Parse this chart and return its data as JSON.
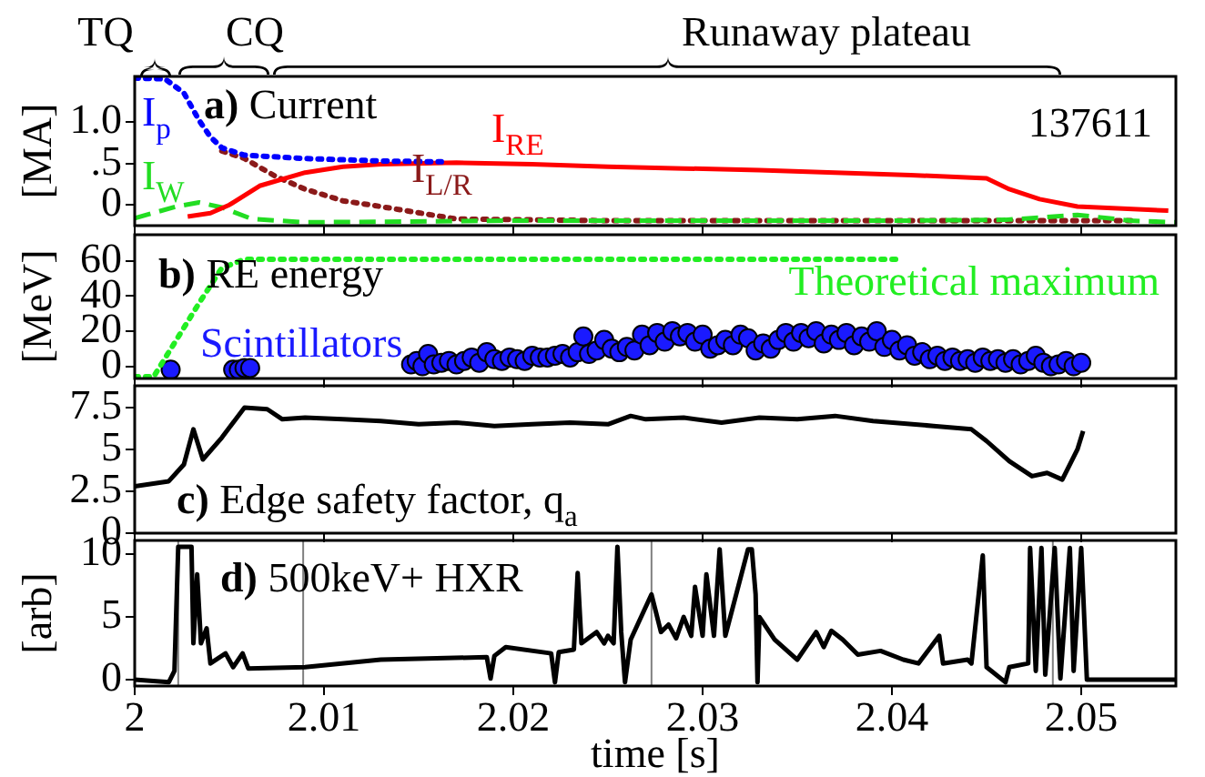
{
  "chart_data": [
    {
      "type": "line",
      "title": "a) Current",
      "ylabel": "[MA]",
      "xlim": [
        2,
        2.055
      ],
      "xticks": [
        2,
        2.01,
        2.02,
        2.03,
        2.04,
        2.05
      ],
      "ylim": [
        -0.25,
        1.55
      ],
      "yticks": [
        0,
        {
          "value": 0.5,
          "label": ".5"
        },
        {
          "value": 1,
          "label": "1.0"
        }
      ],
      "tick_labels": "y",
      "annotations": [
        "TQ",
        "CQ",
        "Runaway plateau",
        "137611"
      ],
      "series": [
        {
          "name": "I$_{p}$",
          "color": "#0000ff",
          "line_style": "dotted",
          "x": [
            2,
            2.0016,
            2.0026,
            2.0034,
            2.004,
            2.0046,
            2.0058,
            2.009,
            2.013,
            2.0162
          ],
          "values": [
            1.53,
            1.52,
            1.35,
            1.02,
            0.82,
            0.69,
            0.6,
            0.56,
            0.53,
            0.52
          ]
        },
        {
          "name": "I$_{RE}$",
          "color": "#ff0000",
          "line_style": "solid",
          "x": [
            2.0028,
            2.004,
            2.005,
            2.0066,
            2.009,
            2.011,
            2.013,
            2.017,
            2.021,
            2.025,
            2.029,
            2.033,
            2.037,
            2.041,
            2.045,
            2.0462,
            2.0478,
            2.0498,
            2.0546
          ],
          "values": [
            -0.14,
            -0.1,
            0,
            0.23,
            0.39,
            0.46,
            0.49,
            0.51,
            0.49,
            0.46,
            0.44,
            0.42,
            0.39,
            0.36,
            0.32,
            0.19,
            0.07,
            -0.02,
            -0.07
          ]
        },
        {
          "name": "I$_{W}$",
          "color": "#22dd22",
          "line_style": "dashed",
          "x": [
            2,
            2.0022,
            2.0034,
            2.0046,
            2.0062,
            2.009,
            2.02,
            2.03,
            2.04,
            2.046,
            2.0498,
            2.0526,
            2.055
          ],
          "values": [
            -0.16,
            -0.02,
            0.03,
            -0.03,
            -0.17,
            -0.21,
            -0.19,
            -0.19,
            -0.19,
            -0.18,
            -0.12,
            -0.19,
            -0.21
          ]
        },
        {
          "name": "I$_{L/R}$",
          "color": "#8b1a1a",
          "line_style": "dotted",
          "x": [
            2.0046,
            2.0058,
            2.0074,
            2.009,
            2.011,
            2.013,
            2.017,
            2.025,
            2.035,
            2.045,
            2.053
          ],
          "values": [
            0.65,
            0.56,
            0.35,
            0.19,
            0.05,
            -0.02,
            -0.17,
            -0.19,
            -0.19,
            -0.19,
            -0.19
          ]
        }
      ]
    },
    {
      "type": "scatter",
      "title": "b) RE energy",
      "ylabel": "[MeV]",
      "xlim": [
        2,
        2.055
      ],
      "xticks": [
        2,
        2.01,
        2.02,
        2.03,
        2.04,
        2.05
      ],
      "ylim": [
        -7,
        75
      ],
      "yticks": [
        0,
        20,
        40,
        60
      ],
      "tick_labels": "y",
      "series": [
        {
          "name": "Theoretical maximum",
          "type": "line",
          "color": "#22ee22",
          "line_style": "dotted",
          "marker": "none",
          "x": [
            2,
            2.001,
            2.0022,
            2.0034,
            2.0046,
            2.0058,
            2.0402
          ],
          "values": [
            -6,
            -6,
            15,
            36,
            56,
            61,
            61
          ]
        },
        {
          "name": "Scintillators",
          "color": "#1a1aff",
          "marker": "circle",
          "x": [
            2.0019,
            2.0052,
            2.0055,
            2.0058,
            2.0061,
            2.0146,
            2.0149,
            2.0152,
            2.0155,
            2.0158,
            2.0162,
            2.0166,
            2.017,
            2.0174,
            2.0178,
            2.0182,
            2.0186,
            2.019,
            2.0194,
            2.0198,
            2.0202,
            2.0206,
            2.021,
            2.0214,
            2.0218,
            2.0222,
            2.0226,
            2.023,
            2.0234,
            2.0237,
            2.024,
            2.0244,
            2.0248,
            2.0252,
            2.0256,
            2.026,
            2.0264,
            2.0268,
            2.0272,
            2.0276,
            2.028,
            2.0284,
            2.0288,
            2.0292,
            2.0296,
            2.03,
            2.0304,
            2.0308,
            2.0312,
            2.0316,
            2.032,
            2.0324,
            2.0328,
            2.0332,
            2.0336,
            2.034,
            2.0344,
            2.0348,
            2.0352,
            2.0356,
            2.036,
            2.0364,
            2.0368,
            2.0372,
            2.0376,
            2.038,
            2.0384,
            2.0388,
            2.0392,
            2.0396,
            2.04,
            2.0404,
            2.0408,
            2.0412,
            2.0416,
            2.042,
            2.0424,
            2.0428,
            2.0432,
            2.0436,
            2.044,
            2.0444,
            2.0448,
            2.0452,
            2.0456,
            2.046,
            2.0464,
            2.0468,
            2.0472,
            2.0476,
            2.048,
            2.0484,
            2.0488,
            2.0492,
            2.0496,
            2.05
          ],
          "values": [
            -2,
            -2,
            -2,
            -1,
            -1,
            1,
            3,
            0,
            7,
            1,
            2,
            3,
            1,
            3,
            5,
            2,
            8,
            4,
            3,
            5,
            4,
            3,
            6,
            5,
            5,
            6,
            7,
            5,
            8,
            17,
            7,
            9,
            15,
            10,
            8,
            11,
            9,
            18,
            12,
            19,
            14,
            20,
            17,
            19,
            14,
            18,
            10,
            12,
            15,
            12,
            18,
            16,
            9,
            13,
            10,
            15,
            19,
            14,
            19,
            16,
            20,
            13,
            18,
            15,
            19,
            12,
            17,
            14,
            20,
            11,
            15,
            9,
            12,
            6,
            8,
            4,
            6,
            3,
            5,
            3,
            4,
            2,
            5,
            3,
            4,
            2,
            4,
            1,
            3,
            6,
            2,
            0,
            1,
            3,
            0,
            2
          ]
        }
      ]
    },
    {
      "type": "line",
      "title": "c) Edge safety factor, q$_{a}$",
      "xlim": [
        2,
        2.055
      ],
      "xticks": [
        2,
        2.01,
        2.02,
        2.03,
        2.04,
        2.05
      ],
      "ylim": [
        0,
        8.8
      ],
      "yticks": [
        0,
        2.5,
        5,
        7.5
      ],
      "tick_labels": "y",
      "series": [
        {
          "color": "#000000",
          "x": [
            2,
            2.0018,
            2.0026,
            2.0031,
            2.0036,
            2.0046,
            2.0058,
            2.007,
            2.0078,
            2.009,
            2.011,
            2.013,
            2.015,
            2.017,
            2.019,
            2.021,
            2.023,
            2.025,
            2.0262,
            2.027,
            2.029,
            2.031,
            2.033,
            2.035,
            2.037,
            2.039,
            2.0422,
            2.0442,
            2.045,
            2.0462,
            2.0474,
            2.0482,
            2.049,
            2.0498,
            2.0501
          ],
          "values": [
            2.8,
            3.1,
            4.1,
            6.2,
            4.4,
            5.7,
            7.5,
            7.4,
            6.8,
            6.9,
            6.8,
            6.7,
            6.5,
            6.6,
            6.4,
            6.5,
            6.6,
            6.5,
            7.0,
            6.8,
            6.9,
            6.6,
            6.9,
            6.8,
            7.0,
            6.7,
            6.4,
            6.2,
            5.5,
            4.3,
            3.4,
            3.6,
            3.2,
            5.0,
            6.1
          ]
        }
      ]
    },
    {
      "type": "line",
      "title": "d) 500keV+ HXR",
      "xlabel": "time [s]",
      "ylabel": "[arb]",
      "xlim": [
        2,
        2.055
      ],
      "xticks": [
        2,
        2.01,
        2.02,
        2.03,
        2.04,
        2.05
      ],
      "ylim": [
        -0.5,
        11.1
      ],
      "yticks": [
        0,
        5,
        10
      ],
      "ref_lines": [
        {
          "axis": "x",
          "value": 2.0023,
          "color": "#808080"
        },
        {
          "axis": "x",
          "value": 2.0089,
          "color": "#808080"
        },
        {
          "axis": "x",
          "value": 2.0273,
          "color": "#808080"
        },
        {
          "axis": "x",
          "value": 2.0485,
          "color": "#808080"
        }
      ],
      "series": [
        {
          "color": "#000000",
          "x": [
            2,
            2.0018,
            2.0021,
            2.0023,
            2.003,
            2.0031,
            2.0033,
            2.0035,
            2.0038,
            2.004,
            2.0048,
            2.0052,
            2.0057,
            2.006,
            2.009,
            2.013,
            2.0186,
            2.0188,
            2.019,
            2.0196,
            2.022,
            2.0222,
            2.0224,
            2.0232,
            2.0234,
            2.0236,
            2.0244,
            2.0248,
            2.025,
            2.0253,
            2.0255,
            2.0257,
            2.0259,
            2.0262,
            2.0273,
            2.0278,
            2.0282,
            2.0286,
            2.029,
            2.0294,
            2.0296,
            2.03,
            2.0302,
            2.0306,
            2.0309,
            2.0312,
            2.0324,
            2.0326,
            2.0328,
            2.0329,
            2.033,
            2.0338,
            2.035,
            2.036,
            2.0364,
            2.0368,
            2.0374,
            2.0382,
            2.0394,
            2.0406,
            2.0414,
            2.0425,
            2.0427,
            2.044,
            2.0442,
            2.0448,
            2.045,
            2.046,
            2.0462,
            2.0472,
            2.0473,
            2.0476,
            2.0479,
            2.0481,
            2.0486,
            2.0489,
            2.0494,
            2.0496,
            2.05,
            2.0503,
            2.055
          ],
          "values": [
            0,
            -0.2,
            0.7,
            10.6,
            10.6,
            2.9,
            8.4,
            2.9,
            4.1,
            1.3,
            2.1,
            1.0,
            2.1,
            0.9,
            1.0,
            1.6,
            1.8,
            0.1,
            1.9,
            2.6,
            2.1,
            -0.2,
            2.2,
            2.4,
            8.5,
            2.9,
            3.8,
            2.9,
            3.5,
            2.9,
            10.6,
            3.8,
            -0.2,
            3.2,
            6.8,
            3.8,
            4.4,
            3.3,
            5.0,
            3.5,
            7.4,
            3.5,
            8.4,
            3.5,
            10.4,
            3.5,
            10.4,
            10.4,
            6.8,
            -0.2,
            5.0,
            3.2,
            1.6,
            3.8,
            2.6,
            3.9,
            3.2,
            2.0,
            2.3,
            1.6,
            1.3,
            3.5,
            1.3,
            1.6,
            1.3,
            9.9,
            1.0,
            -0.2,
            1.0,
            1.3,
            10.5,
            0.7,
            10.5,
            0.4,
            10.5,
            0.1,
            10.5,
            0.7,
            10.5,
            0,
            0
          ]
        }
      ]
    }
  ]
}
